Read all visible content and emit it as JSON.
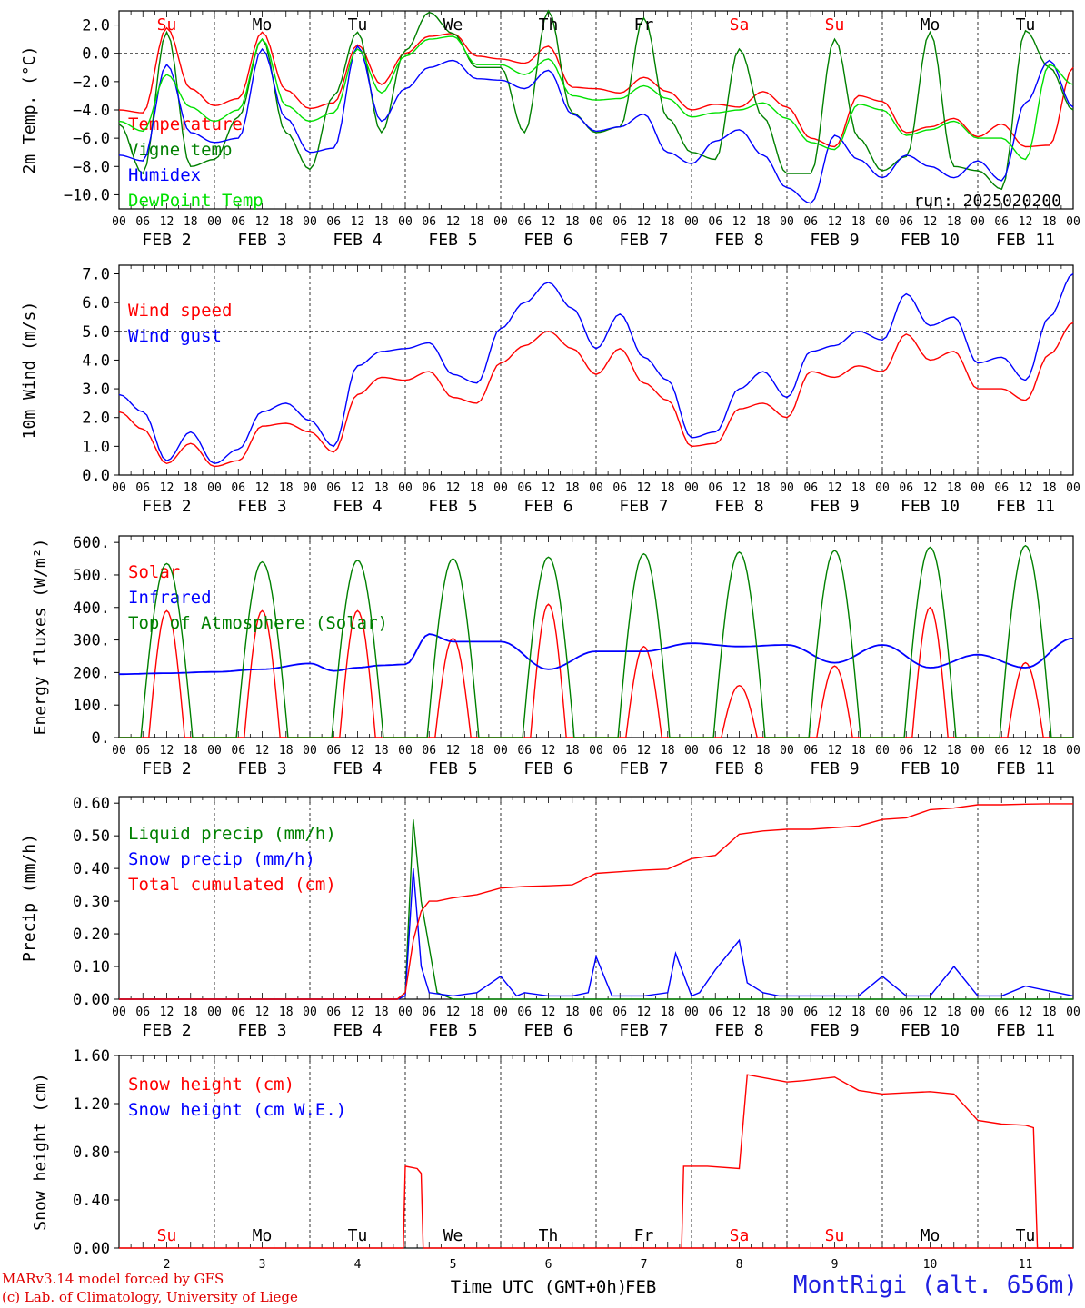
{
  "model_credit": "MARv3.14 model forced by GFS",
  "lab_credit": "(c) Lab. of Climatology, University of Liege",
  "station": "MontRigi (alt. 656m)",
  "run_label": "run: 2025020200",
  "xlabel": "Time UTC (GMT+0h)",
  "month_label": "FEB",
  "colors": {
    "red": "#ff0000",
    "green": "#008000",
    "blue": "#0000ff",
    "lightgreen": "#00e000",
    "grid": "#000000"
  },
  "days": [
    {
      "name": "Su",
      "date_label": "FEB  2",
      "day_num": "2",
      "weekend": true
    },
    {
      "name": "Mo",
      "date_label": "FEB  3",
      "day_num": "3",
      "weekend": false
    },
    {
      "name": "Tu",
      "date_label": "FEB  4",
      "day_num": "4",
      "weekend": false
    },
    {
      "name": "We",
      "date_label": "FEB  5",
      "day_num": "5",
      "weekend": false
    },
    {
      "name": "Th",
      "date_label": "FEB  6",
      "day_num": "6",
      "weekend": false
    },
    {
      "name": "Fr",
      "date_label": "FEB  7",
      "day_num": "7",
      "weekend": false
    },
    {
      "name": "Sa",
      "date_label": "FEB  8",
      "day_num": "8",
      "weekend": true
    },
    {
      "name": "Su",
      "date_label": "FEB  9",
      "day_num": "9",
      "weekend": true
    },
    {
      "name": "Mo",
      "date_label": "FEB 10",
      "day_num": "10",
      "weekend": false
    },
    {
      "name": "Tu",
      "date_label": "FEB 11",
      "day_num": "11",
      "weekend": false
    }
  ],
  "hour_ticks": [
    "00",
    "06",
    "12",
    "18"
  ],
  "chart_data": [
    {
      "type": "line",
      "ylabel": "2m Temp. (°C)",
      "ylim": [
        -11,
        3
      ],
      "yticks": [
        "2.0",
        "0.0",
        "−2.0",
        "−4.0",
        "−6.0",
        "−8.0",
        "−10.0"
      ],
      "ytick_values": [
        2,
        0,
        -2,
        -4,
        -6,
        -8,
        -10
      ],
      "ref_line": 0,
      "legend_placement": "left",
      "x_unit": "hours since 2025-02-02 00 UTC",
      "series": [
        {
          "name": "Temperature",
          "color": "red",
          "x": [
            0,
            6,
            12,
            18,
            24,
            30,
            36,
            42,
            48,
            54,
            60,
            66,
            72,
            78,
            84,
            90,
            96,
            102,
            108,
            114,
            120,
            126,
            132,
            138,
            144,
            150,
            156,
            162,
            168,
            174,
            180,
            186,
            192,
            198,
            204,
            210,
            216,
            222,
            228,
            234,
            240
          ],
          "values": [
            -4.0,
            -4.2,
            1.8,
            -2.5,
            -3.7,
            -3.2,
            1.5,
            -2.6,
            -3.9,
            -3.5,
            0.6,
            -2.2,
            0.0,
            1.2,
            1.4,
            -0.2,
            -0.4,
            -0.7,
            0.5,
            -2.4,
            -2.5,
            -2.8,
            -1.7,
            -2.7,
            -4.0,
            -3.6,
            -3.8,
            -2.7,
            -3.8,
            -6.0,
            -6.6,
            -3.0,
            -3.4,
            -5.6,
            -5.2,
            -4.6,
            -5.9,
            -5.0,
            -6.6,
            -6.5,
            -1.0
          ]
        },
        {
          "name": "Vigne temp",
          "color": "green",
          "x": [
            0,
            6,
            12,
            18,
            24,
            30,
            36,
            42,
            48,
            54,
            60,
            66,
            72,
            78,
            84,
            90,
            96,
            102,
            108,
            114,
            120,
            126,
            132,
            138,
            144,
            150,
            156,
            162,
            168,
            174,
            180,
            186,
            192,
            198,
            204,
            210,
            216,
            222,
            228,
            234,
            240
          ],
          "values": [
            -5.0,
            -8.5,
            1.5,
            -8.0,
            -7.5,
            -4.5,
            1.0,
            -5.6,
            -8.2,
            -3.0,
            1.5,
            -5.6,
            0.2,
            2.9,
            1.4,
            -1.0,
            -1.0,
            -5.6,
            3.0,
            -4.2,
            -5.6,
            -5.2,
            2.5,
            -4.6,
            -7.0,
            -7.5,
            0.3,
            -4.5,
            -8.5,
            -8.5,
            1.0,
            -6.0,
            -8.3,
            -7.3,
            1.5,
            -8.0,
            -8.3,
            -9.6,
            1.6,
            -1.0,
            -4.0
          ]
        },
        {
          "name": "Humidex",
          "color": "blue",
          "x": [
            0,
            6,
            12,
            18,
            24,
            30,
            36,
            42,
            48,
            54,
            60,
            66,
            72,
            78,
            84,
            90,
            96,
            102,
            108,
            114,
            120,
            126,
            132,
            138,
            144,
            150,
            156,
            162,
            168,
            174,
            180,
            186,
            192,
            198,
            204,
            210,
            216,
            222,
            228,
            234,
            240
          ],
          "values": [
            -7.2,
            -7.6,
            -0.8,
            -5.6,
            -6.3,
            -6.0,
            0.3,
            -4.6,
            -7.0,
            -6.7,
            0.5,
            -4.8,
            -2.5,
            -1.0,
            -0.5,
            -1.8,
            -1.9,
            -2.5,
            -1.2,
            -4.3,
            -5.5,
            -5.2,
            -4.3,
            -7.0,
            -7.8,
            -6.2,
            -5.4,
            -7.2,
            -9.5,
            -10.6,
            -5.8,
            -7.5,
            -8.8,
            -7.2,
            -8.0,
            -8.8,
            -7.6,
            -9.0,
            -3.5,
            -0.5,
            -3.8
          ]
        },
        {
          "name": "DewPoint Temp",
          "color": "lightgreen",
          "x": [
            0,
            6,
            12,
            18,
            24,
            30,
            36,
            42,
            48,
            54,
            60,
            66,
            72,
            78,
            84,
            90,
            96,
            102,
            108,
            114,
            120,
            126,
            132,
            138,
            144,
            150,
            156,
            162,
            168,
            174,
            180,
            186,
            192,
            198,
            204,
            210,
            216,
            222,
            228,
            234,
            240
          ],
          "values": [
            -4.8,
            -5.5,
            -1.5,
            -3.8,
            -4.8,
            -4.0,
            1.0,
            -3.7,
            -4.8,
            -4.2,
            0.3,
            -2.8,
            -0.2,
            1.0,
            1.2,
            -0.8,
            -0.8,
            -1.5,
            -0.4,
            -3.0,
            -3.3,
            -3.2,
            -2.3,
            -3.2,
            -4.5,
            -4.2,
            -4.0,
            -3.5,
            -4.6,
            -6.3,
            -6.8,
            -3.6,
            -4.0,
            -5.8,
            -5.4,
            -4.8,
            -6.0,
            -6.0,
            -7.5,
            -0.8,
            -2.2
          ]
        }
      ]
    },
    {
      "type": "line",
      "ylabel": "10m Wind (m/s)",
      "ylim": [
        0,
        7.3
      ],
      "yticks": [
        "7.0",
        "6.0",
        "5.0",
        "4.0",
        "3.0",
        "2.0",
        "1.0",
        "0.0"
      ],
      "ytick_values": [
        7,
        6,
        5,
        4,
        3,
        2,
        1,
        0
      ],
      "ref_line": 5,
      "legend_placement": "top-left",
      "x_unit": "hours since 2025-02-02 00 UTC",
      "series": [
        {
          "name": "Wind speed",
          "color": "red",
          "x": [
            0,
            6,
            12,
            18,
            24,
            30,
            36,
            42,
            48,
            54,
            60,
            66,
            72,
            78,
            84,
            90,
            96,
            102,
            108,
            114,
            120,
            126,
            132,
            138,
            144,
            150,
            156,
            162,
            168,
            174,
            180,
            186,
            192,
            198,
            204,
            210,
            216,
            222,
            228,
            234,
            240
          ],
          "values": [
            2.2,
            1.6,
            0.4,
            1.1,
            0.3,
            0.5,
            1.7,
            1.8,
            1.5,
            0.8,
            2.8,
            3.4,
            3.3,
            3.6,
            2.7,
            2.5,
            3.9,
            4.5,
            5.0,
            4.4,
            3.5,
            4.4,
            3.2,
            2.6,
            1.0,
            1.1,
            2.3,
            2.5,
            2.0,
            3.6,
            3.4,
            3.8,
            3.6,
            4.9,
            4.0,
            4.3,
            3.0,
            3.0,
            2.6,
            4.2,
            5.3
          ]
        },
        {
          "name": "Wind gust",
          "color": "blue",
          "x": [
            0,
            6,
            12,
            18,
            24,
            30,
            36,
            42,
            48,
            54,
            60,
            66,
            72,
            78,
            84,
            90,
            96,
            102,
            108,
            114,
            120,
            126,
            132,
            138,
            144,
            150,
            156,
            162,
            168,
            174,
            180,
            186,
            192,
            198,
            204,
            210,
            216,
            222,
            228,
            234,
            240
          ],
          "values": [
            2.8,
            2.2,
            0.5,
            1.5,
            0.4,
            0.9,
            2.2,
            2.5,
            1.9,
            1.0,
            3.8,
            4.3,
            4.4,
            4.6,
            3.5,
            3.2,
            5.1,
            6.0,
            6.7,
            5.8,
            4.4,
            5.6,
            4.1,
            3.3,
            1.3,
            1.5,
            3.0,
            3.6,
            2.7,
            4.3,
            4.5,
            5.0,
            4.7,
            6.3,
            5.2,
            5.5,
            3.9,
            4.1,
            3.3,
            5.5,
            7.0
          ]
        }
      ]
    },
    {
      "type": "line",
      "ylabel": "Energy fluxes (W/m²)",
      "ylim": [
        0,
        620
      ],
      "yticks": [
        "600.",
        "500.",
        "400.",
        "300.",
        "200.",
        "100.",
        "0."
      ],
      "ytick_values": [
        600,
        500,
        400,
        300,
        200,
        100,
        0
      ],
      "legend_placement": "top-left",
      "x_unit": "hours since 2025-02-02 00 UTC",
      "series": [
        {
          "name": "Solar",
          "color": "red",
          "peaks": [
            390,
            390,
            390,
            305,
            410,
            280,
            160,
            220,
            400,
            230
          ]
        },
        {
          "name": "Infrared",
          "color": "blue",
          "x": [
            0,
            12,
            24,
            36,
            48,
            54,
            60,
            66,
            72,
            78,
            84,
            96,
            108,
            120,
            132,
            144,
            156,
            168,
            180,
            192,
            204,
            216,
            228,
            240
          ],
          "values": [
            195,
            198,
            202,
            210,
            228,
            205,
            215,
            222,
            225,
            318,
            295,
            295,
            210,
            265,
            265,
            290,
            280,
            285,
            230,
            285,
            215,
            255,
            215,
            305
          ]
        },
        {
          "name": "Top of Atmosphere (Solar)",
          "color": "green",
          "peaks": [
            535,
            540,
            545,
            550,
            555,
            565,
            570,
            575,
            585,
            590
          ]
        }
      ]
    },
    {
      "type": "line",
      "ylabel": "Precip (mm/h)",
      "ylim": [
        0,
        0.62
      ],
      "yticks": [
        "0.60",
        "0.50",
        "0.40",
        "0.30",
        "0.20",
        "0.10",
        "0.00"
      ],
      "ytick_values": [
        0.6,
        0.5,
        0.4,
        0.3,
        0.2,
        0.1,
        0.0
      ],
      "legend_placement": "left",
      "x_unit": "hours since 2025-02-02 00 UTC",
      "series": [
        {
          "name": "Liquid precip (mm/h)",
          "color": "green",
          "x": [
            0,
            70,
            72,
            74,
            76,
            80,
            84,
            240
          ],
          "values": [
            0,
            0,
            0.02,
            0.55,
            0.3,
            0.02,
            0,
            0
          ]
        },
        {
          "name": "Snow precip (mm/h)",
          "color": "blue",
          "x": [
            0,
            70,
            72,
            74,
            76,
            78,
            84,
            90,
            96,
            100,
            102,
            108,
            114,
            118,
            120,
            124,
            126,
            132,
            138,
            140,
            144,
            146,
            150,
            156,
            158,
            162,
            166,
            170,
            174,
            186,
            192,
            198,
            204,
            210,
            216,
            222,
            228,
            240
          ],
          "values": [
            0,
            0,
            0.01,
            0.4,
            0.1,
            0.02,
            0.01,
            0.02,
            0.07,
            0.01,
            0.02,
            0.01,
            0.01,
            0.02,
            0.13,
            0.01,
            0.01,
            0.01,
            0.02,
            0.14,
            0.01,
            0.02,
            0.09,
            0.18,
            0.05,
            0.02,
            0.01,
            0.01,
            0.01,
            0.01,
            0.07,
            0.01,
            0.01,
            0.1,
            0.01,
            0.01,
            0.04,
            0.01
          ]
        },
        {
          "name": "Total cumulated (cm)",
          "color": "red",
          "x": [
            0,
            70,
            72,
            74,
            76,
            78,
            80,
            84,
            90,
            96,
            102,
            108,
            114,
            120,
            126,
            132,
            138,
            144,
            150,
            156,
            162,
            168,
            174,
            180,
            186,
            192,
            198,
            204,
            210,
            216,
            222,
            228,
            234,
            240
          ],
          "values": [
            0,
            0,
            0.02,
            0.18,
            0.27,
            0.3,
            0.3,
            0.31,
            0.32,
            0.34,
            0.345,
            0.347,
            0.35,
            0.385,
            0.39,
            0.395,
            0.398,
            0.43,
            0.44,
            0.505,
            0.515,
            0.52,
            0.52,
            0.525,
            0.53,
            0.55,
            0.555,
            0.58,
            0.585,
            0.595,
            0.595,
            0.597,
            0.598,
            0.598
          ]
        }
      ]
    },
    {
      "type": "line",
      "ylabel": "Snow height (cm)",
      "ylim": [
        0,
        1.6
      ],
      "yticks": [
        "1.60",
        "1.20",
        "0.80",
        "0.40",
        "0.00"
      ],
      "ytick_values": [
        1.6,
        1.2,
        0.8,
        0.4,
        0.0
      ],
      "legend_placement": "top-left",
      "x_unit": "hours since 2025-02-02 00 UTC",
      "series": [
        {
          "name": "Snow height (cm)",
          "color": "red",
          "x": [
            0,
            71.5,
            72,
            75,
            76,
            76.5,
            240
          ],
          "values": [
            0,
            0,
            0.68,
            0.66,
            0.62,
            0,
            0
          ],
          "x2": [
            141.5,
            142,
            148,
            156,
            158,
            168,
            172,
            180,
            186,
            192,
            198,
            204,
            210,
            216,
            222,
            228,
            230,
            231,
            240
          ],
          "values2": [
            0,
            0.68,
            0.68,
            0.66,
            1.44,
            1.38,
            1.39,
            1.42,
            1.31,
            1.28,
            1.29,
            1.3,
            1.28,
            1.06,
            1.03,
            1.02,
            1.0,
            0,
            0
          ]
        },
        {
          "name": "Snow height (cm W.E.)",
          "color": "blue"
        }
      ]
    }
  ]
}
